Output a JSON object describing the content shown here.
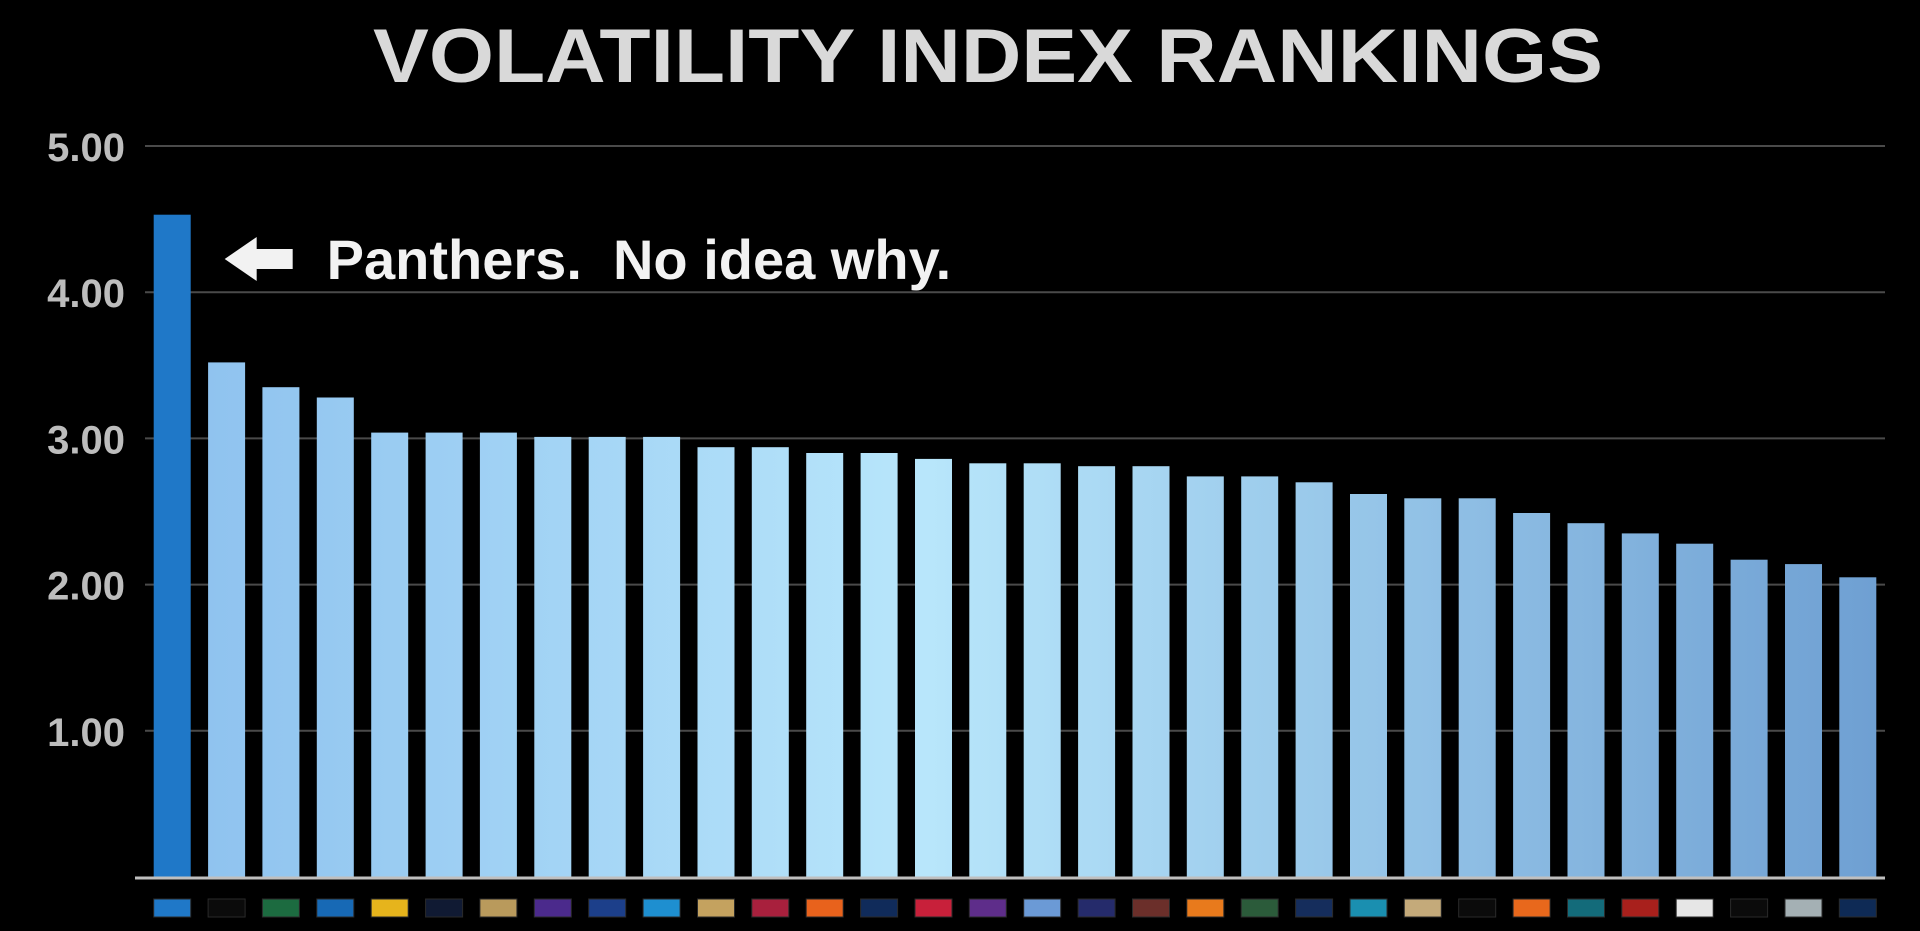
{
  "chart_data": {
    "type": "bar",
    "title": "VOLATILITY INDEX RANKINGS",
    "ylim": [
      0,
      5
    ],
    "yticks": [
      {
        "value": 1,
        "label": "1.00"
      },
      {
        "value": 2,
        "label": "2.00"
      },
      {
        "value": 3,
        "label": "3.00"
      },
      {
        "value": 4,
        "label": "4.00"
      },
      {
        "value": 5,
        "label": "5.00"
      }
    ],
    "grid": true,
    "values": [
      4.53,
      3.52,
      3.35,
      3.28,
      3.04,
      3.04,
      3.04,
      3.01,
      3.01,
      3.01,
      2.94,
      2.94,
      2.9,
      2.9,
      2.86,
      2.83,
      2.83,
      2.81,
      2.81,
      2.74,
      2.74,
      2.7,
      2.62,
      2.59,
      2.59,
      2.49,
      2.42,
      2.35,
      2.28,
      2.17,
      2.14,
      2.05
    ],
    "highlight_index": 0,
    "annotation": {
      "text": "Panthers.  No idea why.",
      "points_to_index": 0,
      "icon": "left-arrow-icon"
    },
    "category_swatch_colors": [
      "#1f78c8",
      "#0b0b0b",
      "#1c6b40",
      "#1769b5",
      "#e6b41c",
      "#101a33",
      "#b99a5c",
      "#4b2a8c",
      "#1c3f8a",
      "#1e8fd0",
      "#c4a25f",
      "#a8203d",
      "#e8621c",
      "#102b5a",
      "#c8203a",
      "#5e2d8a",
      "#6b9ad6",
      "#252b6b",
      "#6b2f2a",
      "#e87a1c",
      "#2b5b3a",
      "#152d5c",
      "#1a8fb0",
      "#c4aa7a",
      "#0b0b0b",
      "#e8681c",
      "#136b7a",
      "#a8201c",
      "#e6e6e6",
      "#0b0b0b",
      "#a4b0b4",
      "#0e2a55"
    ],
    "colors": {
      "highlight_bar": "#1f78c8",
      "bar_gradient_top": "#7fb8ec",
      "bar_gradient_mid": "#b4e0fb",
      "bar_gradient_end": "#6fa4dc",
      "grid": "#4a4a4a",
      "axis": "#bfbfbf"
    }
  }
}
